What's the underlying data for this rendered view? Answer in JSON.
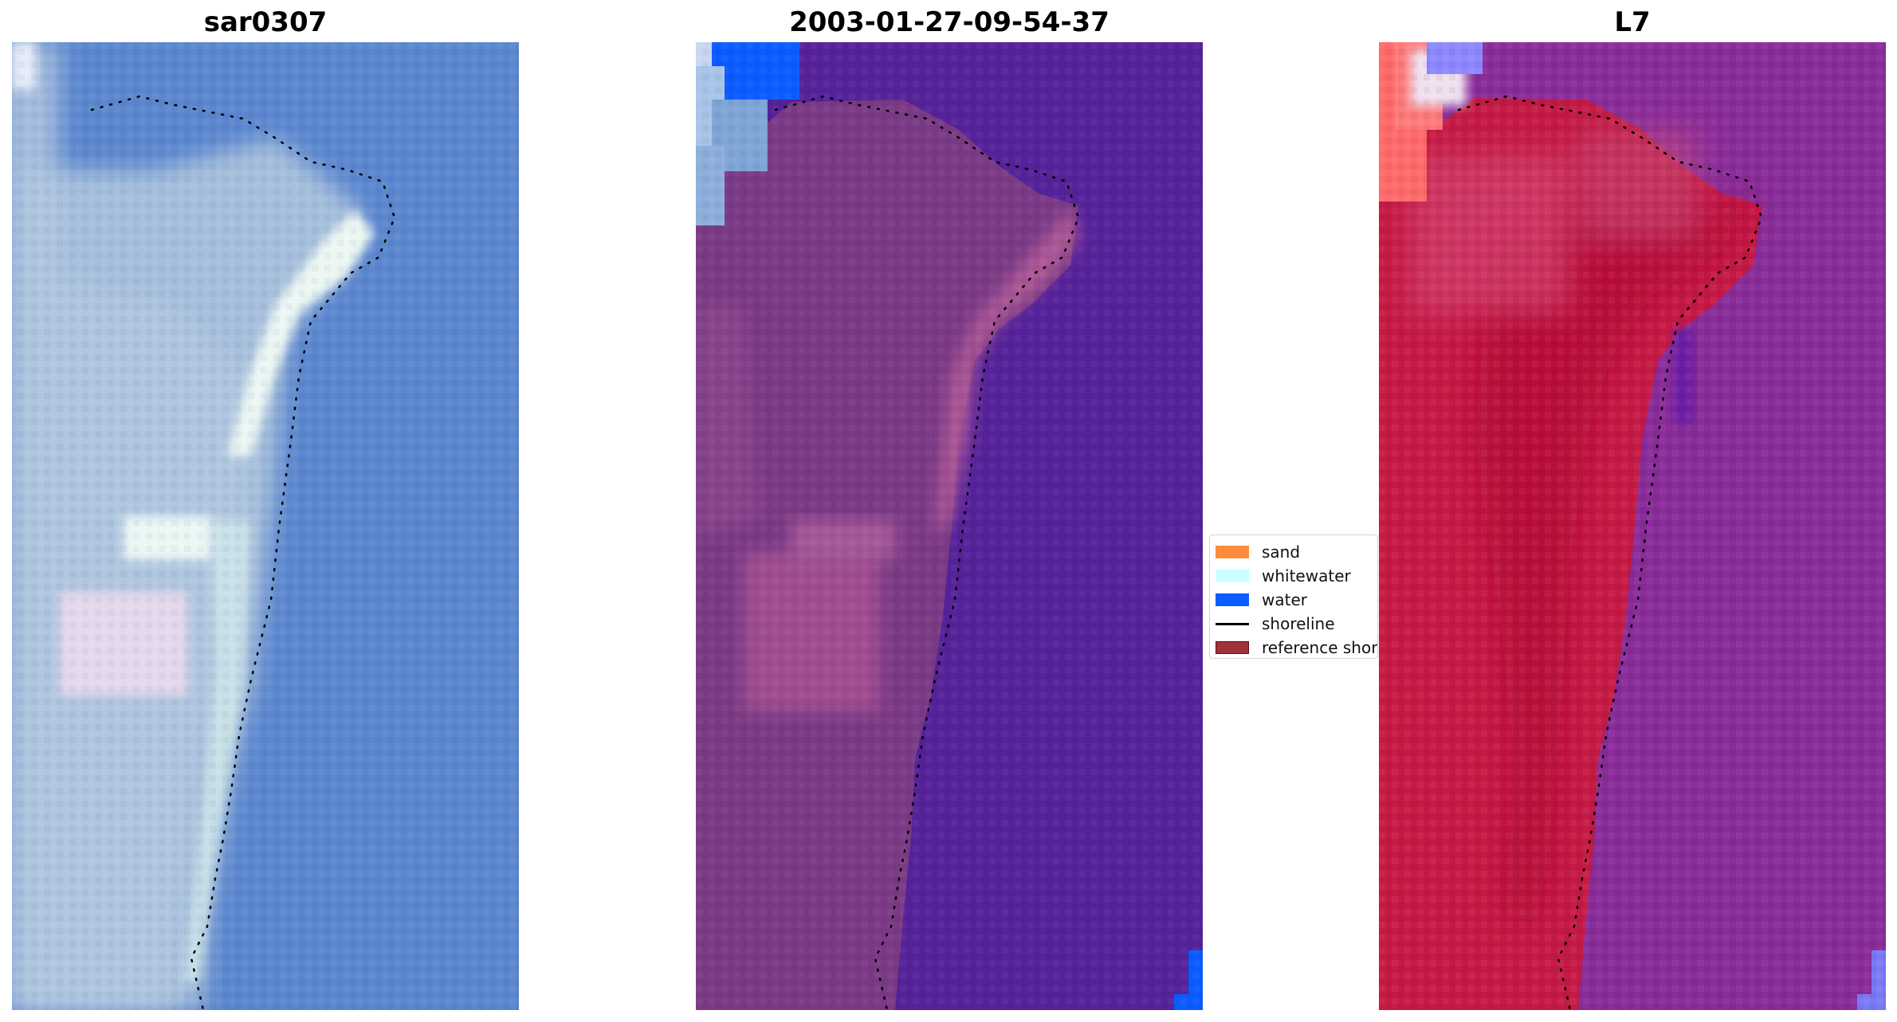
{
  "panels": [
    {
      "title": "sar0307"
    },
    {
      "title": "2003-01-27-09-54-37"
    },
    {
      "title": "L7"
    }
  ],
  "legend": {
    "items": [
      {
        "label": "sand",
        "color": "#ff8c3c",
        "kind": "patch"
      },
      {
        "label": "whitewater",
        "color": "#ccffff",
        "kind": "patch"
      },
      {
        "label": "water",
        "color": "#0b5cff",
        "kind": "patch"
      },
      {
        "label": "shoreline",
        "color": "#000000",
        "kind": "line"
      },
      {
        "label": "reference shoreline",
        "color": "#a0323a",
        "kind": "patch"
      }
    ]
  },
  "colors": {
    "rgb_water": "#5b87cf",
    "rgb_land": "#a8c0dd",
    "rgb_whitewater": "#eef8f2",
    "class_water_background": "#55229a",
    "class_land": "#7b3a85",
    "class_land_light": "#b65c98",
    "class_water_corner": "#0b5cff",
    "mndwi_land": "#c51a45",
    "mndwi_water": "#8a2c9a",
    "mndwi_corner": "#ff5a5a"
  }
}
